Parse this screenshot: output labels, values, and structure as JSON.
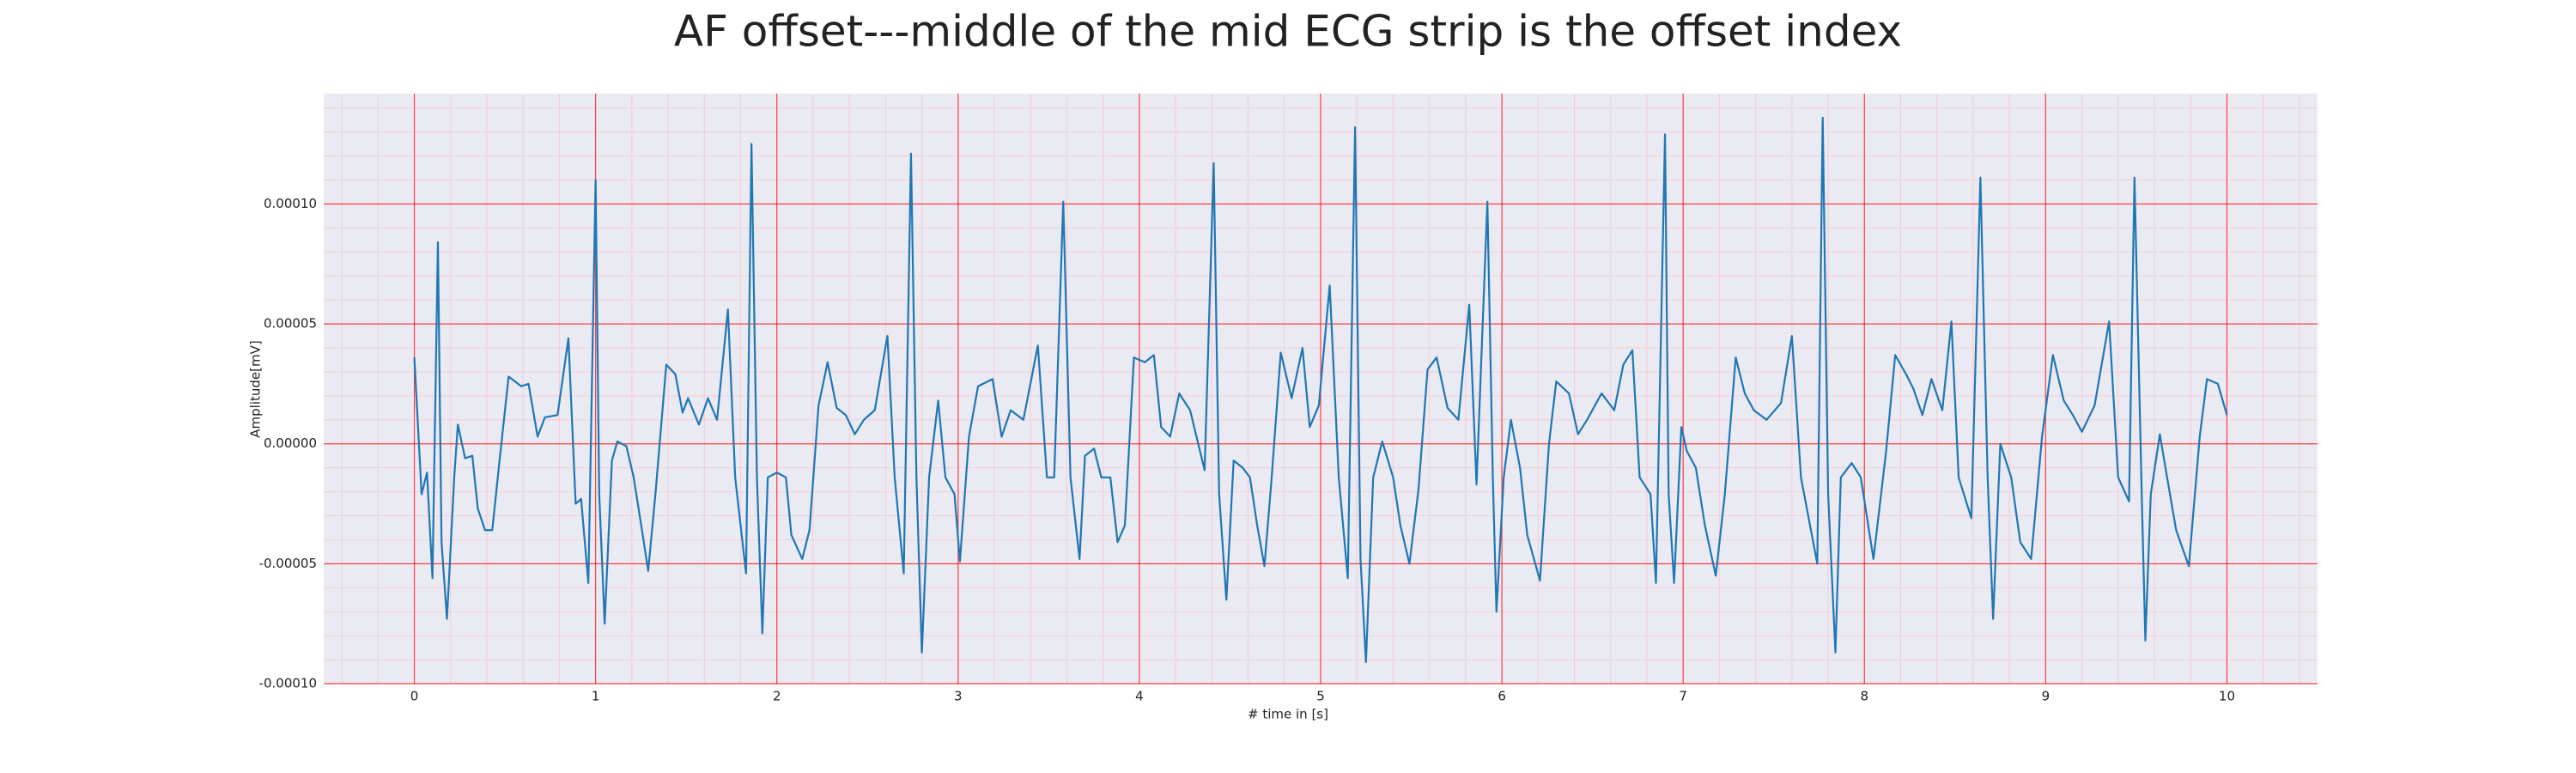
{
  "chart_data": {
    "type": "line",
    "title": "AF offset---middle of the mid ECG strip is the offset index",
    "x_label": "# time in [s]",
    "y_label": "Amplitude[mV]",
    "color": "#1f77b4",
    "grid": true,
    "minor_grid": true,
    "xlim": [
      -0.5,
      10.5
    ],
    "ylim": [
      -0.0001,
      0.000146
    ],
    "xticks": [
      0,
      1,
      2,
      3,
      4,
      5,
      6,
      7,
      8,
      9,
      10
    ],
    "yticks": [
      {
        "value": -0.0001,
        "label": "-0.00010"
      },
      {
        "value": -5e-05,
        "label": "-0.00005"
      },
      {
        "value": 0,
        "label": "0.00000"
      },
      {
        "value": 5e-05,
        "label": "0.00005"
      },
      {
        "value": 0.0001,
        "label": "0.00010"
      }
    ],
    "x": [
      0,
      0.04,
      0.07,
      0.1,
      0.13,
      0.15,
      0.18,
      0.22,
      0.24,
      0.28,
      0.32,
      0.35,
      0.39,
      0.43,
      0.47,
      0.52,
      0.59,
      0.63,
      0.68,
      0.72,
      0.79,
      0.85,
      0.89,
      0.92,
      0.96,
      1.0,
      1.02,
      1.05,
      1.09,
      1.12,
      1.17,
      1.21,
      1.26,
      1.29,
      1.33,
      1.39,
      1.44,
      1.48,
      1.51,
      1.57,
      1.62,
      1.67,
      1.73,
      1.77,
      1.83,
      1.86,
      1.89,
      1.92,
      1.95,
      2.0,
      2.05,
      2.08,
      2.14,
      2.18,
      2.23,
      2.28,
      2.33,
      2.38,
      2.43,
      2.48,
      2.54,
      2.61,
      2.65,
      2.7,
      2.74,
      2.77,
      2.8,
      2.84,
      2.89,
      2.93,
      2.98,
      3.01,
      3.06,
      3.11,
      3.19,
      3.24,
      3.29,
      3.36,
      3.44,
      3.49,
      3.53,
      3.58,
      3.62,
      3.67,
      3.7,
      3.75,
      3.79,
      3.84,
      3.88,
      3.92,
      3.97,
      4.03,
      4.08,
      4.12,
      4.17,
      4.22,
      4.28,
      4.36,
      4.41,
      4.44,
      4.48,
      4.52,
      4.57,
      4.61,
      4.65,
      4.69,
      4.73,
      4.78,
      4.84,
      4.9,
      4.94,
      4.99,
      5.05,
      5.1,
      5.15,
      5.19,
      5.22,
      5.25,
      5.29,
      5.34,
      5.4,
      5.44,
      5.49,
      5.54,
      5.59,
      5.64,
      5.7,
      5.76,
      5.82,
      5.86,
      5.92,
      5.95,
      5.97,
      6.01,
      6.05,
      6.1,
      6.14,
      6.21,
      6.26,
      6.3,
      6.37,
      6.42,
      6.47,
      6.55,
      6.62,
      6.67,
      6.72,
      6.76,
      6.82,
      6.85,
      6.9,
      6.92,
      6.95,
      6.99,
      7.02,
      7.07,
      7.12,
      7.18,
      7.23,
      7.29,
      7.34,
      7.39,
      7.46,
      7.54,
      7.6,
      7.65,
      7.74,
      7.77,
      7.8,
      7.84,
      7.87,
      7.93,
      7.98,
      8.05,
      8.12,
      8.17,
      8.23,
      8.27,
      8.32,
      8.37,
      8.43,
      8.48,
      8.52,
      8.59,
      8.64,
      8.68,
      8.71,
      8.75,
      8.81,
      8.86,
      8.92,
      8.98,
      9.04,
      9.1,
      9.15,
      9.2,
      9.27,
      9.35,
      9.4,
      9.46,
      9.49,
      9.53,
      9.55,
      9.58,
      9.63,
      9.67,
      9.72,
      9.79,
      9.85,
      9.89,
      9.95,
      10.0
    ],
    "values": [
      3.6e-05,
      -2.1e-05,
      -1.2e-05,
      -5.6e-05,
      8.4e-05,
      -4.1e-05,
      -7.3e-05,
      -1.4e-05,
      8e-06,
      -6e-06,
      -5e-06,
      -2.7e-05,
      -3.6e-05,
      -3.6e-05,
      -7e-06,
      2.8e-05,
      2.4e-05,
      2.5e-05,
      3e-06,
      1.1e-05,
      1.2e-05,
      4.4e-05,
      -2.5e-05,
      -2.3e-05,
      -5.8e-05,
      0.00011,
      -2.1e-05,
      -7.5e-05,
      -7e-06,
      1e-06,
      -1e-06,
      -1.4e-05,
      -3.8e-05,
      -5.3e-05,
      -2.1e-05,
      3.3e-05,
      2.9e-05,
      1.3e-05,
      1.9e-05,
      8e-06,
      1.9e-05,
      1e-05,
      5.6e-05,
      -1.4e-05,
      -5.4e-05,
      0.000125,
      -1.4e-05,
      -7.9e-05,
      -1.4e-05,
      -1.2e-05,
      -1.4e-05,
      -3.8e-05,
      -4.8e-05,
      -3.6e-05,
      1.6e-05,
      3.4e-05,
      1.5e-05,
      1.2e-05,
      4e-06,
      1e-05,
      1.4e-05,
      4.5e-05,
      -1.4e-05,
      -5.4e-05,
      0.000121,
      -1.4e-05,
      -8.7e-05,
      -1.4e-05,
      1.8e-05,
      -1.4e-05,
      -2.1e-05,
      -4.9e-05,
      3e-06,
      2.4e-05,
      2.7e-05,
      3e-06,
      1.4e-05,
      1e-05,
      4.1e-05,
      -1.4e-05,
      -1.4e-05,
      0.000101,
      -1.4e-05,
      -4.8e-05,
      -5e-06,
      -2e-06,
      -1.4e-05,
      -1.4e-05,
      -4.1e-05,
      -3.4e-05,
      3.6e-05,
      3.4e-05,
      3.7e-05,
      7e-06,
      3e-06,
      2.1e-05,
      1.4e-05,
      -1.1e-05,
      0.000117,
      -2.1e-05,
      -6.5e-05,
      -7e-06,
      -1e-05,
      -1.4e-05,
      -3.4e-05,
      -5.1e-05,
      -1.4e-05,
      3.8e-05,
      1.9e-05,
      4e-05,
      7e-06,
      1.6e-05,
      6.6e-05,
      -1.4e-05,
      -5.6e-05,
      0.000132,
      -4.8e-05,
      -9.1e-05,
      -1.4e-05,
      1e-06,
      -1.4e-05,
      -3.4e-05,
      -5e-05,
      -1.9e-05,
      3.1e-05,
      3.6e-05,
      1.5e-05,
      1e-05,
      5.8e-05,
      -1.7e-05,
      0.000101,
      -1.4e-05,
      -7e-05,
      -1.4e-05,
      1e-05,
      -1e-05,
      -3.8e-05,
      -5.7e-05,
      0,
      2.6e-05,
      2.1e-05,
      4e-06,
      1e-05,
      2.1e-05,
      1.4e-05,
      3.3e-05,
      3.9e-05,
      -1.4e-05,
      -2.1e-05,
      -5.8e-05,
      0.000129,
      -2.1e-05,
      -5.8e-05,
      7e-06,
      -3e-06,
      -1e-05,
      -3.4e-05,
      -5.5e-05,
      -2.1e-05,
      3.6e-05,
      2.1e-05,
      1.4e-05,
      1e-05,
      1.7e-05,
      4.5e-05,
      -1.4e-05,
      -5e-05,
      0.000136,
      -2.1e-05,
      -8.7e-05,
      -1.4e-05,
      -8e-06,
      -1.4e-05,
      -4.8e-05,
      -3e-06,
      3.7e-05,
      2.9e-05,
      2.3e-05,
      1.2e-05,
      2.7e-05,
      1.4e-05,
      5.1e-05,
      -1.4e-05,
      -3.1e-05,
      0.000111,
      -1.4e-05,
      -7.3e-05,
      0,
      -1.4e-05,
      -4.1e-05,
      -4.8e-05,
      3e-06,
      3.7e-05,
      1.8e-05,
      1.2e-05,
      5e-06,
      1.6e-05,
      5.1e-05,
      -1.4e-05,
      -2.4e-05,
      0.000111,
      -2.1e-05,
      -8.2e-05,
      -2.1e-05,
      4e-06,
      -1.4e-05,
      -3.6e-05,
      -5.1e-05,
      3e-06,
      2.7e-05,
      2.5e-05,
      1.2e-05
    ]
  }
}
